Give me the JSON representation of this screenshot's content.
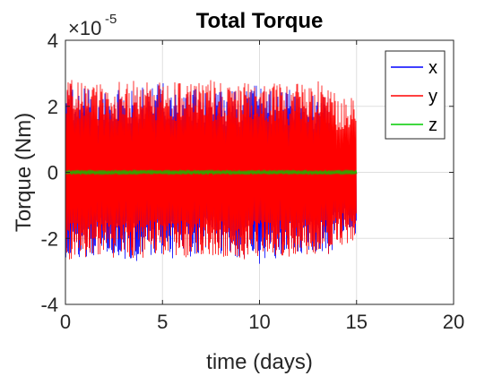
{
  "chart_data": {
    "type": "line",
    "title": "Total Torque",
    "xlabel": "time (days)",
    "ylabel": "Torque (Nm)",
    "xlim": [
      0,
      20
    ],
    "ylim": [
      -4,
      4
    ],
    "y_multiplier": "×10",
    "y_exponent": "-5",
    "x_ticks": [
      0,
      5,
      10,
      15,
      20
    ],
    "y_ticks": [
      -4,
      -2,
      0,
      2,
      4
    ],
    "grid": true,
    "legend_position": "top-right",
    "series": [
      {
        "name": "x",
        "color": "#0000ff",
        "x": [
          0,
          0.5,
          1,
          1.5,
          2,
          2.5,
          3,
          3.5,
          4,
          4.5,
          5,
          5.5,
          6,
          6.5,
          7,
          7.5,
          8,
          8.5,
          9,
          9.5,
          10,
          10.5,
          11,
          11.5,
          12,
          12.5,
          13,
          13.5,
          14,
          14.5,
          15
        ],
        "y_max": [
          2.8,
          2.5,
          2.6,
          2.4,
          2.5,
          2.7,
          2.4,
          2.5,
          2.6,
          2.7,
          2.8,
          2.5,
          2.6,
          2.5,
          2.6,
          2.3,
          2.6,
          2.5,
          2.4,
          2.6,
          2.7,
          2.6,
          2.4,
          2.5,
          2.6,
          2.3,
          2.4,
          2.5,
          0.6,
          0.8,
          0.9
        ],
        "y_min": [
          -2.8,
          -2.6,
          -2.7,
          -2.5,
          -2.4,
          -2.7,
          -2.6,
          -2.8,
          -2.5,
          -2.6,
          -2.5,
          -2.7,
          -2.6,
          -2.7,
          -2.5,
          -2.4,
          -2.6,
          -2.5,
          -2.7,
          -2.6,
          -2.8,
          -2.5,
          -2.7,
          -2.6,
          -2.5,
          -2.4,
          -2.6,
          -2.7,
          -2.0,
          -1.8,
          -1.9
        ]
      },
      {
        "name": "y",
        "color": "#ff0000",
        "x": [
          0,
          0.5,
          1,
          1.5,
          2,
          2.5,
          3,
          3.5,
          4,
          4.5,
          5,
          5.5,
          6,
          6.5,
          7,
          7.5,
          8,
          8.5,
          9,
          9.5,
          10,
          10.5,
          11,
          11.5,
          12,
          12.5,
          13,
          13.5,
          14,
          14.5,
          15
        ],
        "y_max": [
          2.8,
          2.8,
          2.7,
          2.8,
          2.7,
          2.8,
          2.7,
          2.8,
          2.8,
          2.7,
          2.8,
          2.7,
          2.8,
          2.7,
          2.8,
          2.8,
          2.7,
          2.8,
          2.7,
          2.8,
          2.7,
          2.8,
          2.7,
          2.6,
          2.8,
          2.7,
          2.8,
          2.7,
          2.3,
          2.4,
          2.3
        ],
        "y_min": [
          -2.7,
          -2.6,
          -2.7,
          -2.6,
          -2.5,
          -2.6,
          -2.6,
          -2.7,
          -2.6,
          -2.5,
          -2.6,
          -2.7,
          -2.6,
          -2.6,
          -2.5,
          -2.6,
          -2.6,
          -2.5,
          -2.6,
          -2.7,
          -2.6,
          -2.5,
          -2.6,
          -2.6,
          -2.5,
          -2.6,
          -2.6,
          -2.5,
          -2.2,
          -2.3,
          -2.2
        ]
      },
      {
        "name": "z",
        "color": "#00cc00",
        "x": [
          0,
          15
        ],
        "y_max": [
          0.08,
          0.08
        ],
        "y_min": [
          -0.08,
          -0.08
        ]
      }
    ]
  }
}
